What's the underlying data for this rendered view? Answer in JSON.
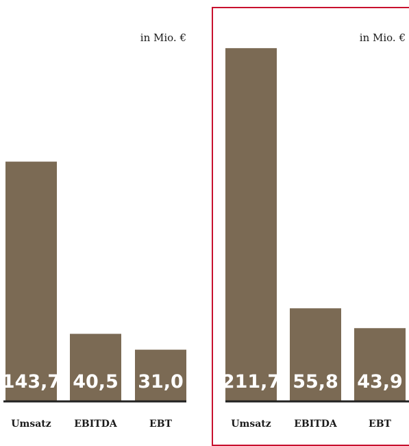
{
  "chart_data": [
    {
      "type": "bar",
      "unit_label": "in Mio. €",
      "categories": [
        "Umsatz",
        "EBITDA",
        "EBT"
      ],
      "values": [
        143.7,
        40.5,
        31.0
      ],
      "value_labels": [
        "143,7",
        "40,5",
        "31,0"
      ],
      "ylim": [
        0,
        220
      ],
      "grid": false,
      "highlighted": false
    },
    {
      "type": "bar",
      "unit_label": "in Mio. €",
      "categories": [
        "Umsatz",
        "EBITDA",
        "EBT"
      ],
      "values": [
        211.7,
        55.8,
        43.9
      ],
      "value_labels": [
        "211,7",
        "55,8",
        "43,9"
      ],
      "ylim": [
        0,
        220
      ],
      "grid": false,
      "highlighted": true
    }
  ],
  "colors": {
    "bar": "#7b6a54",
    "highlight_frame": "#c8102e",
    "baseline": "#222222"
  }
}
